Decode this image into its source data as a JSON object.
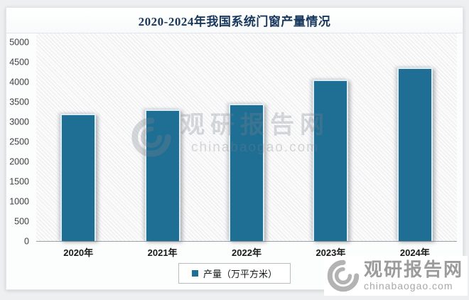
{
  "chart_data": {
    "type": "bar",
    "title": "2020-2024年我国系统门窗产量情况",
    "categories": [
      "2020年",
      "2021年",
      "2022年",
      "2023年",
      "2024年"
    ],
    "series": [
      {
        "name": "产量（万平方米）",
        "values": [
          3200,
          3300,
          3450,
          4050,
          4350
        ]
      }
    ],
    "xlabel": "",
    "ylabel": "",
    "ylim": [
      0,
      5000
    ],
    "ytick_step": 500,
    "grid": false,
    "legend_position": "bottom",
    "bar_color": "#1F6E94",
    "bar_border_color": "#DDECF6",
    "title_color": "#17375D"
  },
  "legend": {
    "label": "产量（万平方米）"
  },
  "watermarks": {
    "center": {
      "brand": "观研报告网",
      "domain": "chinabaogao.com"
    },
    "corner": {
      "brand": "观研报告网",
      "domain": "chinabaogao.com"
    }
  },
  "icons": {
    "brand_logo": "swirl-icon"
  }
}
